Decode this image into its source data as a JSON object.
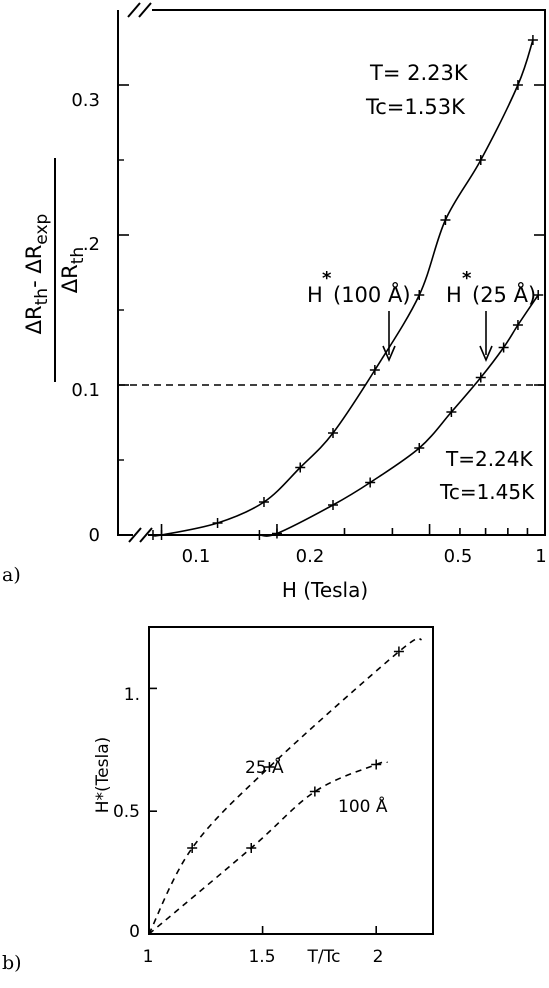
{
  "colors": {
    "ink": "#000000",
    "background": "#ffffff"
  },
  "chart_data": [
    {
      "type": "line",
      "panel_label": "a)",
      "xlabel": "H (Tesla)",
      "ylabel": "ΔRth- ΔRexp / ΔRth",
      "x_scale": "log",
      "xlim": [
        0.077,
        1.0
      ],
      "ylim": [
        0,
        0.35
      ],
      "x_tick_labels": [
        "0.1",
        "0.2",
        "0.5",
        "1"
      ],
      "y_tick_labels": [
        "0",
        "0.1",
        ".2",
        "0.3"
      ],
      "reference_line": {
        "y": 0.1,
        "style": "dashed"
      },
      "series": [
        {
          "label_line1": "T= 2.23K",
          "label_line2": "Tc=1.53K",
          "x": [
            0.095,
            0.1,
            0.14,
            0.185,
            0.23,
            0.28,
            0.36,
            0.47,
            0.55,
            0.68,
            0.85,
            0.93
          ],
          "y": [
            0.0,
            0.0,
            0.008,
            0.022,
            0.045,
            0.068,
            0.11,
            0.16,
            0.21,
            0.25,
            0.3,
            0.33
          ]
        },
        {
          "label_line1": "T=2.24K",
          "label_line2": "Tc=1.45K",
          "x": [
            0.18,
            0.2,
            0.28,
            0.35,
            0.47,
            0.57,
            0.68,
            0.78,
            0.85,
            0.96
          ],
          "y": [
            0.0,
            0.001,
            0.02,
            0.035,
            0.058,
            0.082,
            0.105,
            0.125,
            0.14,
            0.16
          ]
        }
      ],
      "annotations": [
        {
          "prefix": "H",
          "star": "*",
          "text": "(100 Å)",
          "points_to_x": 0.35
        },
        {
          "prefix": "H",
          "star": "*",
          "text": "(25 Å)",
          "points_to_x": 0.675
        }
      ]
    },
    {
      "type": "line",
      "panel_label": "b)",
      "xlabel": "T/Tc",
      "ylabel": "H*(Tesla)",
      "xlim": [
        1,
        2.25
      ],
      "ylim": [
        0,
        1.25
      ],
      "x_tick_labels": [
        "1",
        "1.5",
        "2"
      ],
      "y_tick_labels": [
        "0",
        "0.5",
        "1."
      ],
      "line_style": "dashed",
      "series": [
        {
          "label": "25 Å",
          "x": [
            1.0,
            1.19,
            1.53,
            2.1
          ],
          "y": [
            0.0,
            0.35,
            0.68,
            1.15
          ]
        },
        {
          "label": "100 Å",
          "x": [
            1.0,
            1.45,
            1.73,
            2.0
          ],
          "y": [
            0.0,
            0.35,
            0.58,
            0.69
          ]
        }
      ]
    }
  ]
}
